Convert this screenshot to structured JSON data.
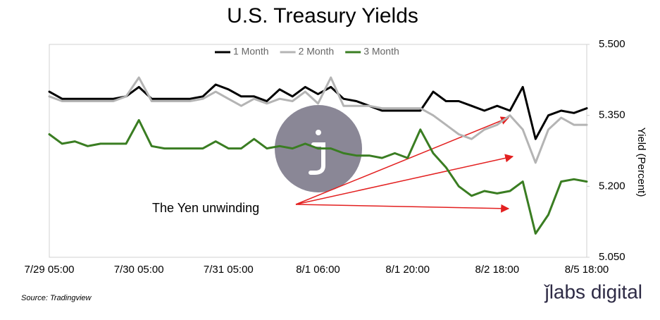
{
  "chart_data": {
    "type": "line",
    "title": "U.S.  Treasury Yields",
    "y_label": "Yield (Percent)",
    "annotation": "The Yen unwinding",
    "source": "Source: Tradingview",
    "brand": "ǰlabs digital",
    "categories": [
      "7/29 05:00",
      null,
      null,
      null,
      null,
      null,
      null,
      "7/30 05:00",
      null,
      null,
      null,
      null,
      null,
      null,
      "7/31 05:00",
      null,
      null,
      null,
      null,
      null,
      null,
      "8/1 06:00",
      null,
      null,
      null,
      null,
      null,
      null,
      "8/1 20:00",
      null,
      null,
      null,
      null,
      null,
      null,
      "8/2 18:00",
      null,
      null,
      null,
      null,
      null,
      null,
      "8/5 18:00"
    ],
    "series": [
      {
        "name": "1 Month",
        "color": "#000000",
        "values": [
          5.4,
          5.385,
          5.385,
          5.385,
          5.385,
          5.385,
          5.39,
          5.41,
          5.385,
          5.385,
          5.385,
          5.385,
          5.39,
          5.415,
          5.405,
          5.39,
          5.39,
          5.38,
          5.405,
          5.39,
          5.41,
          5.395,
          5.41,
          5.385,
          5.38,
          5.37,
          5.36,
          5.36,
          5.36,
          5.36,
          5.4,
          5.38,
          5.38,
          5.37,
          5.36,
          5.37,
          5.36,
          5.41,
          5.3,
          5.35,
          5.36,
          5.355,
          5.365
        ]
      },
      {
        "name": "2 Month",
        "color": "#b4b4b4",
        "values": [
          5.39,
          5.38,
          5.38,
          5.38,
          5.38,
          5.38,
          5.39,
          5.43,
          5.38,
          5.38,
          5.38,
          5.38,
          5.385,
          5.4,
          5.385,
          5.37,
          5.385,
          5.375,
          5.385,
          5.38,
          5.4,
          5.375,
          5.43,
          5.37,
          5.37,
          5.37,
          5.365,
          5.365,
          5.365,
          5.365,
          5.35,
          5.33,
          5.31,
          5.3,
          5.32,
          5.33,
          5.35,
          5.32,
          5.25,
          5.32,
          5.345,
          5.33,
          5.33
        ]
      },
      {
        "name": "3 Month",
        "color": "#3a7d22",
        "values": [
          5.31,
          5.29,
          5.295,
          5.285,
          5.29,
          5.29,
          5.29,
          5.34,
          5.285,
          5.28,
          5.28,
          5.28,
          5.28,
          5.295,
          5.28,
          5.28,
          5.3,
          5.28,
          5.285,
          5.28,
          5.29,
          5.28,
          5.28,
          5.27,
          5.265,
          5.265,
          5.26,
          5.27,
          5.26,
          5.32,
          5.27,
          5.24,
          5.2,
          5.18,
          5.19,
          5.185,
          5.19,
          5.21,
          5.1,
          5.14,
          5.21,
          5.215,
          5.21
        ]
      }
    ],
    "ylim": [
      5.05,
      5.5
    ],
    "yticks": [
      {
        "value": 5.05,
        "label": "5.050"
      },
      {
        "value": 5.2,
        "label": "5.200"
      },
      {
        "value": 5.35,
        "label": "5.350"
      },
      {
        "value": 5.5,
        "label": "5.500"
      }
    ],
    "legend": "top"
  }
}
